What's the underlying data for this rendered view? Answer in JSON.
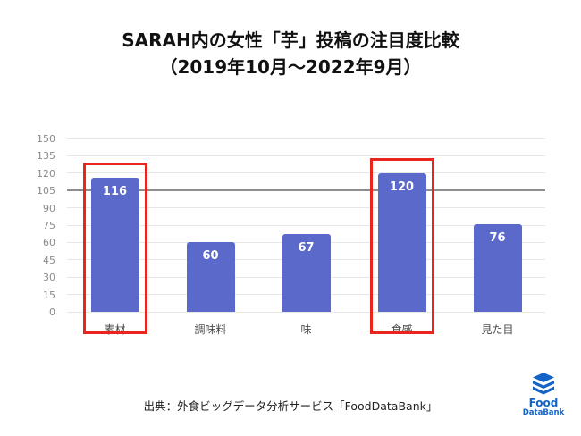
{
  "title": {
    "line1": "SARAH内の女性「芋」投稿の注目度比較",
    "line2": "（2019年10月〜2022年9月）"
  },
  "chart_data": {
    "type": "bar",
    "categories": [
      "素材",
      "調味料",
      "味",
      "食感",
      "見た目"
    ],
    "values": [
      116,
      60,
      67,
      120,
      76
    ],
    "highlighted": [
      "素材",
      "食感"
    ],
    "ylim": [
      0,
      150
    ],
    "ytick_step": 15,
    "reference_line": 105,
    "grid": true,
    "legend": "none",
    "bar_color": "#5b69ca",
    "highlight_box_color": "#e8251f"
  },
  "source": {
    "text": "出典：外食ビッグデータ分析サービス「FoodDataBank」"
  },
  "logo": {
    "line1": "Food",
    "line2": "DataBank",
    "color": "#1464c8"
  }
}
